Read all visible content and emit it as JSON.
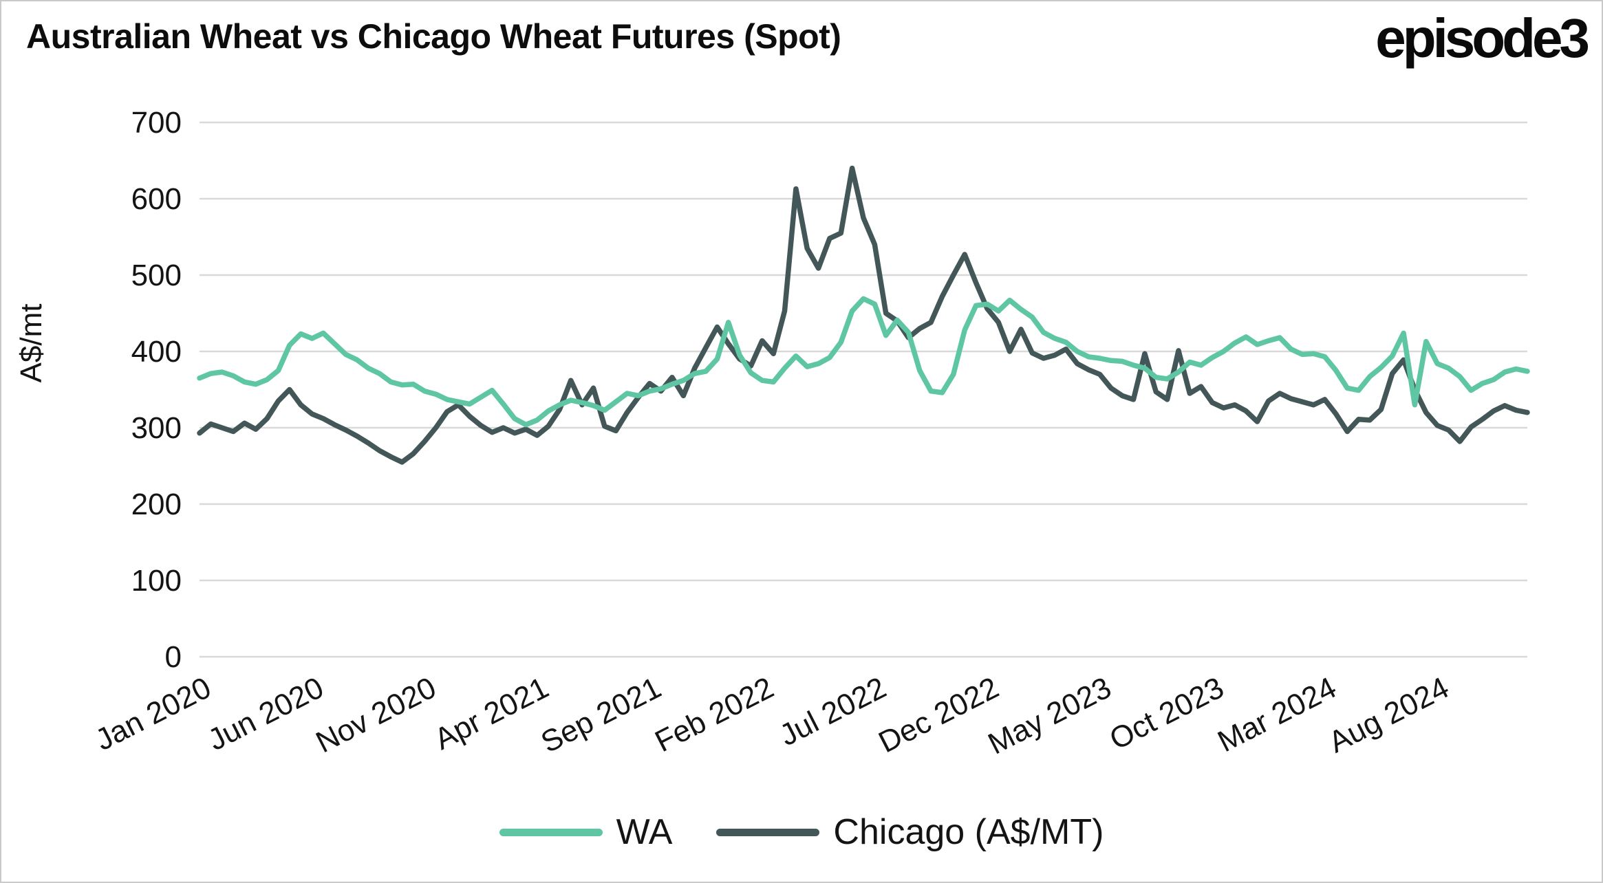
{
  "header": {
    "title": "Australian Wheat vs Chicago Wheat Futures (Spot)",
    "logo_text": "episode3"
  },
  "colors": {
    "background": "#ffffff",
    "page_border": "#c9c9c9",
    "gridline": "#d9d9d9",
    "text": "#141414",
    "wa_green": "#5ec6a2",
    "chicago_slate": "#435658"
  },
  "chart_data": {
    "type": "line",
    "title": "Australian Wheat vs Chicago Wheat Futures (Spot)",
    "xlabel": "",
    "ylabel": "A$/mt",
    "ylim": [
      0,
      700
    ],
    "yticks": [
      0,
      100,
      200,
      300,
      400,
      500,
      600,
      700
    ],
    "grid": "horizontal-only",
    "legend_position": "bottom-center",
    "x_unit": "months since Jan 2020, sampled every 0.5 month",
    "x_step_months": 0.5,
    "x_total_months": 59,
    "xticks": [
      {
        "label": "Jan 2020",
        "month": 0
      },
      {
        "label": "Jun 2020",
        "month": 5
      },
      {
        "label": "Nov 2020",
        "month": 10
      },
      {
        "label": "Apr 2021",
        "month": 15
      },
      {
        "label": "Sep 2021",
        "month": 20
      },
      {
        "label": "Feb 2022",
        "month": 25
      },
      {
        "label": "Jul 2022",
        "month": 30
      },
      {
        "label": "Dec 2022",
        "month": 35
      },
      {
        "label": "May 2023",
        "month": 40
      },
      {
        "label": "Oct 2023",
        "month": 45
      },
      {
        "label": "Mar 2024",
        "month": 50
      },
      {
        "label": "Aug 2024",
        "month": 55
      }
    ],
    "series": [
      {
        "name": "WA",
        "color": "#5ec6a2",
        "values": [
          365,
          371,
          373,
          368,
          360,
          357,
          363,
          375,
          408,
          423,
          417,
          424,
          410,
          396,
          389,
          378,
          371,
          360,
          356,
          357,
          348,
          344,
          337,
          334,
          331,
          340,
          349,
          331,
          312,
          304,
          310,
          322,
          330,
          336,
          333,
          329,
          323,
          334,
          345,
          342,
          348,
          351,
          357,
          362,
          371,
          374,
          390,
          438,
          395,
          372,
          362,
          360,
          378,
          394,
          380,
          384,
          392,
          412,
          453,
          469,
          462,
          421,
          441,
          425,
          375,
          348,
          346,
          370,
          428,
          460,
          462,
          453,
          467,
          455,
          445,
          425,
          417,
          412,
          400,
          393,
          391,
          388,
          387,
          382,
          378,
          366,
          364,
          373,
          386,
          382,
          392,
          400,
          411,
          419,
          409,
          414,
          418,
          403,
          396,
          397,
          393,
          375,
          352,
          349,
          367,
          379,
          394,
          424,
          330,
          413,
          384,
          378,
          367,
          349,
          358,
          363,
          373,
          377,
          374
        ]
      },
      {
        "name": "Chicago (A$/MT)",
        "color": "#435658",
        "values": [
          293,
          305,
          300,
          295,
          306,
          298,
          312,
          335,
          350,
          330,
          318,
          312,
          304,
          297,
          289,
          280,
          270,
          262,
          255,
          266,
          282,
          300,
          321,
          330,
          315,
          303,
          294,
          300,
          293,
          298,
          290,
          302,
          324,
          362,
          330,
          352,
          302,
          296,
          320,
          340,
          358,
          348,
          366,
          342,
          378,
          405,
          432,
          410,
          390,
          381,
          414,
          397,
          453,
          613,
          535,
          509,
          548,
          555,
          640,
          575,
          540,
          450,
          440,
          418,
          430,
          438,
          472,
          500,
          527,
          490,
          456,
          438,
          400,
          429,
          398,
          391,
          395,
          403,
          384,
          376,
          370,
          352,
          342,
          337,
          397,
          347,
          337,
          401,
          345,
          354,
          333,
          326,
          330,
          322,
          308,
          335,
          345,
          338,
          334,
          330,
          337,
          318,
          295,
          311,
          310,
          324,
          371,
          389,
          350,
          320,
          303,
          297,
          282,
          301,
          311,
          322,
          329,
          323,
          320
        ]
      }
    ]
  }
}
